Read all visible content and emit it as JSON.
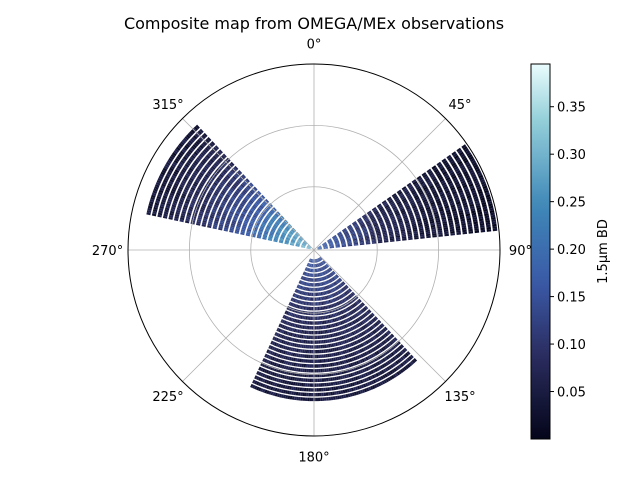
{
  "chart_data": {
    "type": "heatmap",
    "projection": "polar",
    "title": "Composite map from OMEGA/MEx observations",
    "theta_zero": "top",
    "theta_direction": "clockwise",
    "theta_ticks": [
      {
        "deg": 0,
        "label": "0°"
      },
      {
        "deg": 45,
        "label": "45°"
      },
      {
        "deg": 90,
        "label": "90°"
      },
      {
        "deg": 135,
        "label": "135°"
      },
      {
        "deg": 180,
        "label": "180°"
      },
      {
        "deg": 225,
        "label": "225°"
      },
      {
        "deg": 270,
        "label": "270°"
      },
      {
        "deg": 315,
        "label": "315°"
      }
    ],
    "grid": true,
    "r_gridlines": [
      0.34,
      0.67
    ],
    "colormap": "ice (dark navy → blue → light cyan)",
    "colors": {
      "low": "#04051a",
      "mid_low": "#2a2c5e",
      "mid": "#3b5aa8",
      "mid_high": "#3e87b8",
      "high": "#94cfd9",
      "max": "#eafcfd"
    },
    "colorbar": {
      "label": "1.5µm BD",
      "range": [
        0.0,
        0.395
      ],
      "ticks": [
        "0.05",
        "0.10",
        "0.15",
        "0.20",
        "0.25",
        "0.30",
        "0.35"
      ],
      "tick_values": [
        0.05,
        0.1,
        0.15,
        0.2,
        0.25,
        0.3,
        0.35
      ]
    },
    "strips": [
      {
        "name": "east strip",
        "theta_range": [
          55,
          84
        ],
        "r_range": [
          0.02,
          1.0
        ],
        "value_low": 0.02,
        "value_high": 0.12,
        "peak_near_center": 0.22
      },
      {
        "name": "northwest strip",
        "theta_range": [
          282,
          317
        ],
        "r_range": [
          0.02,
          0.93
        ],
        "value_low": 0.03,
        "value_high": 0.3,
        "peak_near_center": 0.3
      },
      {
        "name": "south strip",
        "theta_range": [
          137,
          205
        ],
        "r_range": [
          0.05,
          0.82
        ],
        "value_low": 0.04,
        "value_high": 0.12,
        "peak_near_center": 0.18
      }
    ]
  }
}
